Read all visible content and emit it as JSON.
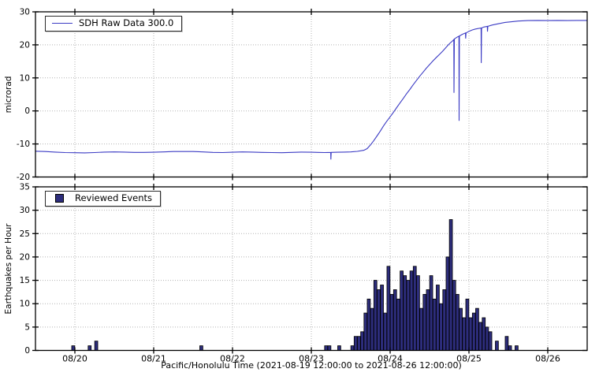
{
  "figure_bg": "#ffffff",
  "chart_data": {
    "x_axis": {
      "label": "Pacific/Honolulu Time (2021-08-19 12:00:00 to 2021-08-26 12:00:00)",
      "epoch": "2021-08-19 12:00:00",
      "range_hours": [
        0,
        168
      ],
      "ticks": [
        {
          "hour": 12,
          "label": "08/20"
        },
        {
          "hour": 36,
          "label": "08/21"
        },
        {
          "hour": 60,
          "label": "08/22"
        },
        {
          "hour": 84,
          "label": "08/23"
        },
        {
          "hour": 108,
          "label": "08/24"
        },
        {
          "hour": 132,
          "label": "08/25"
        },
        {
          "hour": 156,
          "label": "08/26"
        }
      ]
    },
    "grid": {
      "on": true,
      "color": "#b3b3b3",
      "style": "dotted"
    },
    "panels": [
      {
        "type": "line",
        "legend": "SDH Raw Data 300.0",
        "legend_position": "upper-left",
        "ylabel": "microrad",
        "ylim": [
          -20,
          30
        ],
        "yticks": [
          30,
          20,
          10,
          0,
          -10,
          -20
        ],
        "line_color": "#3b3bc4",
        "points": [
          [
            0,
            -12.2
          ],
          [
            3,
            -12.3
          ],
          [
            6,
            -12.45
          ],
          [
            9,
            -12.6
          ],
          [
            12,
            -12.65
          ],
          [
            15,
            -12.7
          ],
          [
            18,
            -12.6
          ],
          [
            21,
            -12.45
          ],
          [
            24,
            -12.4
          ],
          [
            27,
            -12.45
          ],
          [
            30,
            -12.55
          ],
          [
            33,
            -12.55
          ],
          [
            36,
            -12.5
          ],
          [
            39,
            -12.4
          ],
          [
            42,
            -12.3
          ],
          [
            45,
            -12.3
          ],
          [
            48,
            -12.3
          ],
          [
            51,
            -12.4
          ],
          [
            54,
            -12.55
          ],
          [
            57,
            -12.6
          ],
          [
            60,
            -12.5
          ],
          [
            63,
            -12.4
          ],
          [
            66,
            -12.45
          ],
          [
            69,
            -12.55
          ],
          [
            72,
            -12.6
          ],
          [
            75,
            -12.65
          ],
          [
            78,
            -12.55
          ],
          [
            81,
            -12.45
          ],
          [
            84,
            -12.5
          ],
          [
            86,
            -12.55
          ],
          [
            88,
            -12.6
          ],
          [
            89.9,
            -12.55
          ],
          [
            89.95,
            -14.7
          ],
          [
            90.05,
            -12.55
          ],
          [
            92,
            -12.5
          ],
          [
            94,
            -12.45
          ],
          [
            96,
            -12.4
          ],
          [
            98,
            -12.25
          ],
          [
            100,
            -11.9
          ],
          [
            101,
            -11.4
          ],
          [
            102,
            -10.3
          ],
          [
            103,
            -9.0
          ],
          [
            104,
            -7.6
          ],
          [
            105,
            -6.1
          ],
          [
            106,
            -4.5
          ],
          [
            107,
            -3.1
          ],
          [
            108,
            -1.8
          ],
          [
            109,
            -0.4
          ],
          [
            110,
            1.0
          ],
          [
            111,
            2.4
          ],
          [
            112,
            3.8
          ],
          [
            113,
            5.2
          ],
          [
            114,
            6.5
          ],
          [
            115,
            7.9
          ],
          [
            116,
            9.2
          ],
          [
            117,
            10.5
          ],
          [
            118,
            11.7
          ],
          [
            119,
            12.9
          ],
          [
            120,
            14.0
          ],
          [
            121,
            15.1
          ],
          [
            122,
            16.1
          ],
          [
            123,
            17.1
          ],
          [
            124,
            18.1
          ],
          [
            125,
            19.2
          ],
          [
            126,
            20.3
          ],
          [
            127,
            21.2
          ],
          [
            127.4,
            21.6
          ],
          [
            127.45,
            5.5
          ],
          [
            127.55,
            21.8
          ],
          [
            128.5,
            22.4
          ],
          [
            128.95,
            22.6
          ],
          [
            129.0,
            -3.0
          ],
          [
            129.1,
            22.7
          ],
          [
            130,
            23.2
          ],
          [
            130.95,
            23.6
          ],
          [
            131.0,
            21.9
          ],
          [
            131.1,
            23.6
          ],
          [
            132,
            24.1
          ],
          [
            133,
            24.5
          ],
          [
            134,
            24.8
          ],
          [
            135.7,
            25.1
          ],
          [
            135.75,
            14.5
          ],
          [
            135.85,
            25.1
          ],
          [
            136.5,
            25.4
          ],
          [
            137.6,
            25.6
          ],
          [
            137.65,
            24.0
          ],
          [
            137.75,
            25.6
          ],
          [
            139,
            26.0
          ],
          [
            141,
            26.4
          ],
          [
            143,
            26.8
          ],
          [
            145,
            27.0
          ],
          [
            147,
            27.2
          ],
          [
            150,
            27.35
          ],
          [
            153,
            27.4
          ],
          [
            156,
            27.35
          ],
          [
            159,
            27.4
          ],
          [
            162,
            27.35
          ],
          [
            165,
            27.4
          ],
          [
            168,
            27.4
          ]
        ]
      },
      {
        "type": "bar",
        "legend": "Reviewed Events",
        "legend_position": "upper-left",
        "ylabel": "Earthquakes per Hour",
        "ylim": [
          0,
          35
        ],
        "yticks": [
          35,
          30,
          25,
          20,
          15,
          10,
          5,
          0
        ],
        "bar_color": "#2d2d7c",
        "bar_edge_color": "#000000",
        "bin_hours": 1,
        "bars": [
          [
            11,
            1
          ],
          [
            16,
            1
          ],
          [
            18,
            2
          ],
          [
            50,
            1
          ],
          [
            88,
            1
          ],
          [
            89,
            1
          ],
          [
            92,
            1
          ],
          [
            96,
            1
          ],
          [
            97,
            3
          ],
          [
            98,
            3
          ],
          [
            99,
            4
          ],
          [
            100,
            8
          ],
          [
            101,
            11
          ],
          [
            102,
            9
          ],
          [
            103,
            15
          ],
          [
            104,
            13
          ],
          [
            105,
            14
          ],
          [
            106,
            8
          ],
          [
            107,
            18
          ],
          [
            108,
            12
          ],
          [
            109,
            13
          ],
          [
            110,
            11
          ],
          [
            111,
            17
          ],
          [
            112,
            16
          ],
          [
            113,
            15
          ],
          [
            114,
            17
          ],
          [
            115,
            18
          ],
          [
            116,
            16
          ],
          [
            117,
            9
          ],
          [
            118,
            12
          ],
          [
            119,
            13
          ],
          [
            120,
            16
          ],
          [
            121,
            11
          ],
          [
            122,
            14
          ],
          [
            123,
            10
          ],
          [
            124,
            13
          ],
          [
            125,
            20
          ],
          [
            126,
            28
          ],
          [
            127,
            15
          ],
          [
            128,
            12
          ],
          [
            129,
            9
          ],
          [
            130,
            7
          ],
          [
            131,
            11
          ],
          [
            132,
            7
          ],
          [
            133,
            8
          ],
          [
            134,
            9
          ],
          [
            135,
            6
          ],
          [
            136,
            7
          ],
          [
            137,
            5
          ],
          [
            138,
            4
          ],
          [
            140,
            2
          ],
          [
            143,
            3
          ],
          [
            144,
            1
          ],
          [
            146,
            1
          ]
        ]
      }
    ]
  }
}
